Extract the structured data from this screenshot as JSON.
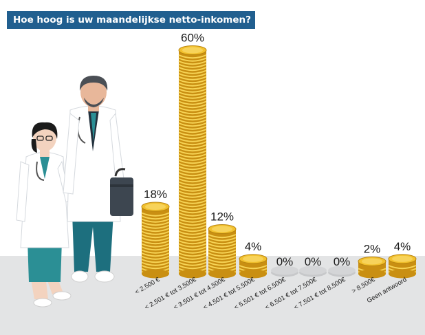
{
  "header": {
    "title": "Hoe hoog is uw maandelijkse netto-inkomen?"
  },
  "colors": {
    "title_bg": "#215f8f",
    "coin": "#f2c12e",
    "coin_dark": "#c98f12",
    "empty_coin": "#c7c8ca"
  },
  "illustration": {
    "icons": [
      "female-doctor-icon",
      "male-doctor-icon",
      "briefcase-icon"
    ]
  },
  "chart_data": {
    "type": "bar",
    "title": "Hoe hoog is uw maandelijkse netto-inkomen?",
    "categories": [
      "< 2.500 €",
      "< 2.501 € tot 3.500€",
      "< 3.501 € tot 4.500€",
      "< 4.501 € tot 5.500€",
      "< 5.501 € tot 6.500€",
      "< 6.501 € tot 7.500€",
      "< 7.501 € tot 8.500€",
      "> 8.500€",
      "Geen antwoord"
    ],
    "values": [
      18,
      60,
      12,
      4,
      0,
      0,
      0,
      2,
      4
    ],
    "labels": [
      "18%",
      "60%",
      "12%",
      "4%",
      "0%",
      "0%",
      "0%",
      "2%",
      "4%"
    ],
    "unit": "%",
    "ylim": [
      0,
      60
    ],
    "grid": false,
    "legend": "none"
  }
}
